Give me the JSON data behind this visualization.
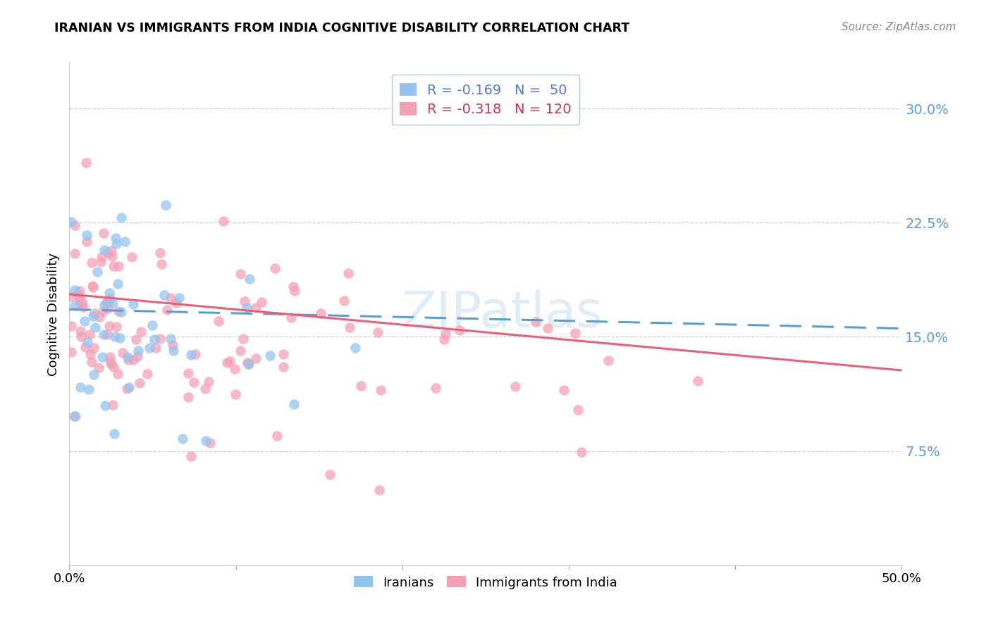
{
  "title": "IRANIAN VS IMMIGRANTS FROM INDIA COGNITIVE DISABILITY CORRELATION CHART",
  "source": "Source: ZipAtlas.com",
  "ylabel": "Cognitive Disability",
  "color_iranian": "#93c4f0",
  "color_india": "#f5a0b5",
  "trendline_iranian_color": "#5a9fd4",
  "trendline_india_color": "#e8607a",
  "ytick_values": [
    0.075,
    0.15,
    0.225,
    0.3
  ],
  "ytick_labels": [
    "7.5%",
    "15.0%",
    "22.5%",
    "30.0%"
  ],
  "xlim": [
    0.0,
    0.5
  ],
  "ylim": [
    0.0,
    0.33
  ],
  "watermark_text": "ZIPatlas",
  "legend_label1": "R = -0.169   N =  50",
  "legend_label2": "R = -0.318   N = 120",
  "bottom_legend1": "Iranians",
  "bottom_legend2": "Immigrants from India",
  "iran_seed": 7,
  "india_seed": 13
}
